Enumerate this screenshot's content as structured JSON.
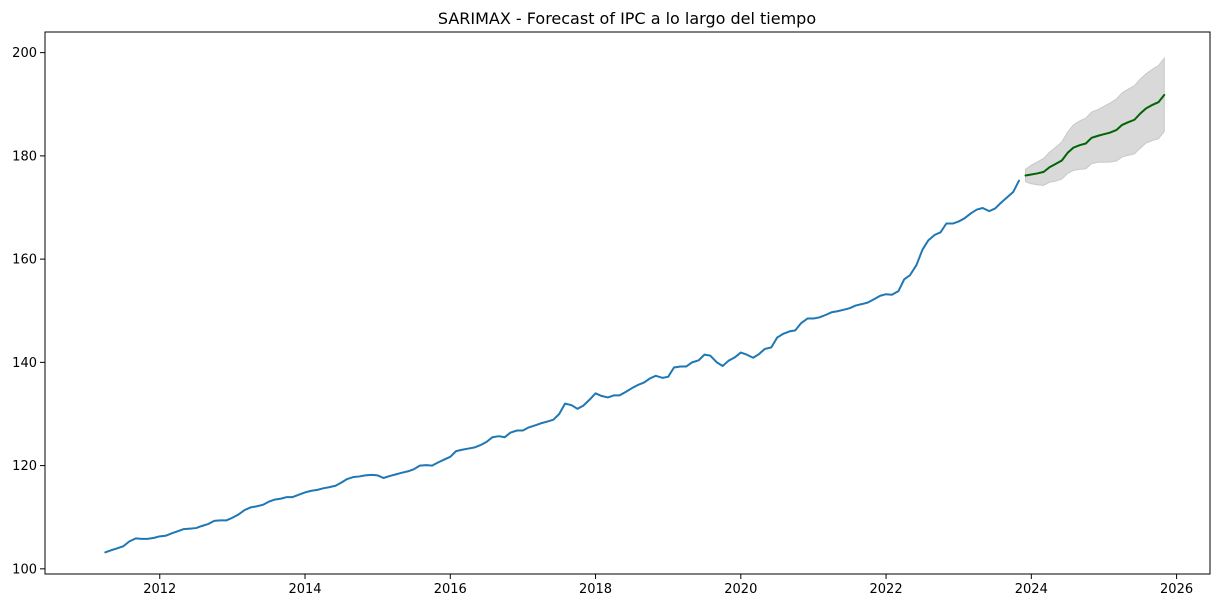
{
  "chart_data": {
    "type": "line",
    "title": "SARIMAX - Forecast of IPC a lo largo del tiempo",
    "xlabel": "",
    "ylabel": "",
    "xlim": [
      2010.42,
      2026.46
    ],
    "ylim": [
      99.0,
      204.0
    ],
    "grid": false,
    "legend": "none",
    "x_ticks": [
      2012,
      2014,
      2016,
      2018,
      2020,
      2022,
      2024,
      2026
    ],
    "x_tick_labels": [
      "2012",
      "2014",
      "2016",
      "2018",
      "2020",
      "2022",
      "2024",
      "2026"
    ],
    "y_ticks": [
      100,
      120,
      140,
      160,
      180,
      200
    ],
    "y_tick_labels": [
      "100",
      "120",
      "140",
      "160",
      "180",
      "200"
    ],
    "colors": {
      "observed": "#1f77b4",
      "forecast": "#006400",
      "band": "#d9d9d9",
      "band_edge": "#c8c8c8",
      "axis": "#000000"
    },
    "series": [
      {
        "name": "Observed IPC",
        "points": [
          [
            2011.25,
            103.2
          ],
          [
            2011.33,
            103.6
          ],
          [
            2011.42,
            104.0
          ],
          [
            2011.5,
            104.4
          ],
          [
            2011.58,
            105.3
          ],
          [
            2011.67,
            105.9
          ],
          [
            2011.75,
            105.8
          ],
          [
            2011.83,
            105.8
          ],
          [
            2011.92,
            106.0
          ],
          [
            2012.0,
            106.3
          ],
          [
            2012.08,
            106.4
          ],
          [
            2012.17,
            106.9
          ],
          [
            2012.25,
            107.3
          ],
          [
            2012.33,
            107.7
          ],
          [
            2012.42,
            107.8
          ],
          [
            2012.5,
            107.9
          ],
          [
            2012.58,
            108.3
          ],
          [
            2012.67,
            108.7
          ],
          [
            2012.75,
            109.3
          ],
          [
            2012.83,
            109.4
          ],
          [
            2012.92,
            109.4
          ],
          [
            2013.0,
            109.9
          ],
          [
            2013.08,
            110.5
          ],
          [
            2013.17,
            111.4
          ],
          [
            2013.25,
            111.9
          ],
          [
            2013.33,
            112.1
          ],
          [
            2013.42,
            112.4
          ],
          [
            2013.5,
            113.0
          ],
          [
            2013.58,
            113.4
          ],
          [
            2013.67,
            113.6
          ],
          [
            2013.75,
            113.9
          ],
          [
            2013.83,
            113.9
          ],
          [
            2013.92,
            114.4
          ],
          [
            2014.0,
            114.8
          ],
          [
            2014.08,
            115.1
          ],
          [
            2014.17,
            115.3
          ],
          [
            2014.25,
            115.6
          ],
          [
            2014.33,
            115.8
          ],
          [
            2014.42,
            116.1
          ],
          [
            2014.5,
            116.7
          ],
          [
            2014.58,
            117.4
          ],
          [
            2014.67,
            117.8
          ],
          [
            2014.75,
            117.9
          ],
          [
            2014.83,
            118.1
          ],
          [
            2014.92,
            118.2
          ],
          [
            2015.0,
            118.1
          ],
          [
            2015.08,
            117.6
          ],
          [
            2015.17,
            118.0
          ],
          [
            2015.25,
            118.3
          ],
          [
            2015.33,
            118.6
          ],
          [
            2015.42,
            118.9
          ],
          [
            2015.5,
            119.3
          ],
          [
            2015.58,
            120.0
          ],
          [
            2015.67,
            120.1
          ],
          [
            2015.75,
            120.0
          ],
          [
            2015.83,
            120.6
          ],
          [
            2015.92,
            121.2
          ],
          [
            2016.0,
            121.7
          ],
          [
            2016.08,
            122.8
          ],
          [
            2016.17,
            123.1
          ],
          [
            2016.25,
            123.3
          ],
          [
            2016.33,
            123.5
          ],
          [
            2016.42,
            124.0
          ],
          [
            2016.5,
            124.6
          ],
          [
            2016.58,
            125.5
          ],
          [
            2016.67,
            125.7
          ],
          [
            2016.75,
            125.5
          ],
          [
            2016.83,
            126.4
          ],
          [
            2016.92,
            126.8
          ],
          [
            2017.0,
            126.8
          ],
          [
            2017.08,
            127.4
          ],
          [
            2017.17,
            127.8
          ],
          [
            2017.25,
            128.2
          ],
          [
            2017.33,
            128.5
          ],
          [
            2017.42,
            128.9
          ],
          [
            2017.5,
            130.0
          ],
          [
            2017.58,
            132.0
          ],
          [
            2017.67,
            131.7
          ],
          [
            2017.75,
            131.0
          ],
          [
            2017.83,
            131.6
          ],
          [
            2017.92,
            132.8
          ],
          [
            2018.0,
            134.0
          ],
          [
            2018.08,
            133.5
          ],
          [
            2018.17,
            133.2
          ],
          [
            2018.25,
            133.6
          ],
          [
            2018.33,
            133.6
          ],
          [
            2018.42,
            134.3
          ],
          [
            2018.5,
            135.0
          ],
          [
            2018.58,
            135.6
          ],
          [
            2018.67,
            136.1
          ],
          [
            2018.75,
            136.9
          ],
          [
            2018.83,
            137.4
          ],
          [
            2018.92,
            137.0
          ],
          [
            2019.0,
            137.2
          ],
          [
            2019.08,
            139.0
          ],
          [
            2019.17,
            139.2
          ],
          [
            2019.25,
            139.2
          ],
          [
            2019.33,
            140.0
          ],
          [
            2019.42,
            140.4
          ],
          [
            2019.5,
            141.5
          ],
          [
            2019.58,
            141.3
          ],
          [
            2019.67,
            140.0
          ],
          [
            2019.75,
            139.3
          ],
          [
            2019.83,
            140.3
          ],
          [
            2019.92,
            141.0
          ],
          [
            2020.0,
            141.9
          ],
          [
            2020.08,
            141.5
          ],
          [
            2020.17,
            140.9
          ],
          [
            2020.25,
            141.6
          ],
          [
            2020.33,
            142.6
          ],
          [
            2020.42,
            142.9
          ],
          [
            2020.5,
            144.8
          ],
          [
            2020.58,
            145.5
          ],
          [
            2020.67,
            146.0
          ],
          [
            2020.75,
            146.2
          ],
          [
            2020.83,
            147.6
          ],
          [
            2020.92,
            148.5
          ],
          [
            2021.0,
            148.5
          ],
          [
            2021.08,
            148.7
          ],
          [
            2021.17,
            149.2
          ],
          [
            2021.25,
            149.7
          ],
          [
            2021.33,
            149.9
          ],
          [
            2021.42,
            150.2
          ],
          [
            2021.5,
            150.5
          ],
          [
            2021.58,
            151.0
          ],
          [
            2021.67,
            151.3
          ],
          [
            2021.75,
            151.6
          ],
          [
            2021.83,
            152.2
          ],
          [
            2021.92,
            152.9
          ],
          [
            2022.0,
            153.2
          ],
          [
            2022.08,
            153.1
          ],
          [
            2022.17,
            153.8
          ],
          [
            2022.25,
            156.1
          ],
          [
            2022.33,
            156.9
          ],
          [
            2022.42,
            158.9
          ],
          [
            2022.5,
            161.8
          ],
          [
            2022.58,
            163.6
          ],
          [
            2022.67,
            164.7
          ],
          [
            2022.75,
            165.2
          ],
          [
            2022.83,
            166.9
          ],
          [
            2022.92,
            166.9
          ],
          [
            2023.0,
            167.3
          ],
          [
            2023.08,
            167.9
          ],
          [
            2023.17,
            168.9
          ],
          [
            2023.25,
            169.6
          ],
          [
            2023.33,
            169.9
          ],
          [
            2023.42,
            169.3
          ],
          [
            2023.5,
            169.8
          ],
          [
            2023.58,
            170.9
          ],
          [
            2023.67,
            172.0
          ],
          [
            2023.75,
            173.0
          ],
          [
            2023.83,
            175.2
          ]
        ]
      },
      {
        "name": "Forecast",
        "points": [
          [
            2023.92,
            176.2
          ],
          [
            2024.0,
            176.4
          ],
          [
            2024.08,
            176.6
          ],
          [
            2024.17,
            176.9
          ],
          [
            2024.25,
            177.8
          ],
          [
            2024.33,
            178.4
          ],
          [
            2024.42,
            179.1
          ],
          [
            2024.5,
            180.6
          ],
          [
            2024.58,
            181.6
          ],
          [
            2024.67,
            182.1
          ],
          [
            2024.75,
            182.4
          ],
          [
            2024.83,
            183.5
          ],
          [
            2024.92,
            183.9
          ],
          [
            2025.0,
            184.2
          ],
          [
            2025.08,
            184.5
          ],
          [
            2025.17,
            185.0
          ],
          [
            2025.25,
            186.0
          ],
          [
            2025.33,
            186.5
          ],
          [
            2025.42,
            187.0
          ],
          [
            2025.5,
            188.2
          ],
          [
            2025.58,
            189.2
          ],
          [
            2025.67,
            189.9
          ],
          [
            2025.75,
            190.4
          ],
          [
            2025.83,
            191.8
          ]
        ]
      }
    ],
    "confidence_band": {
      "x": [
        2023.92,
        2024.0,
        2024.08,
        2024.17,
        2024.25,
        2024.33,
        2024.42,
        2024.5,
        2024.58,
        2024.67,
        2024.75,
        2024.83,
        2024.92,
        2025.0,
        2025.08,
        2025.17,
        2025.25,
        2025.33,
        2025.42,
        2025.5,
        2025.58,
        2025.67,
        2025.75,
        2025.83
      ],
      "lower": [
        175.0,
        174.6,
        174.4,
        174.3,
        174.9,
        175.1,
        175.5,
        176.6,
        177.2,
        177.4,
        177.5,
        178.5,
        178.8,
        178.8,
        178.8,
        179.0,
        179.8,
        180.1,
        180.4,
        181.5,
        182.5,
        183.0,
        183.3,
        184.7
      ],
      "upper": [
        177.4,
        178.2,
        178.8,
        179.5,
        180.7,
        181.6,
        182.7,
        184.6,
        186.0,
        186.8,
        187.3,
        188.5,
        189.0,
        189.6,
        190.2,
        191.0,
        192.2,
        192.9,
        193.6,
        194.9,
        195.9,
        196.8,
        197.5,
        198.9
      ]
    }
  }
}
